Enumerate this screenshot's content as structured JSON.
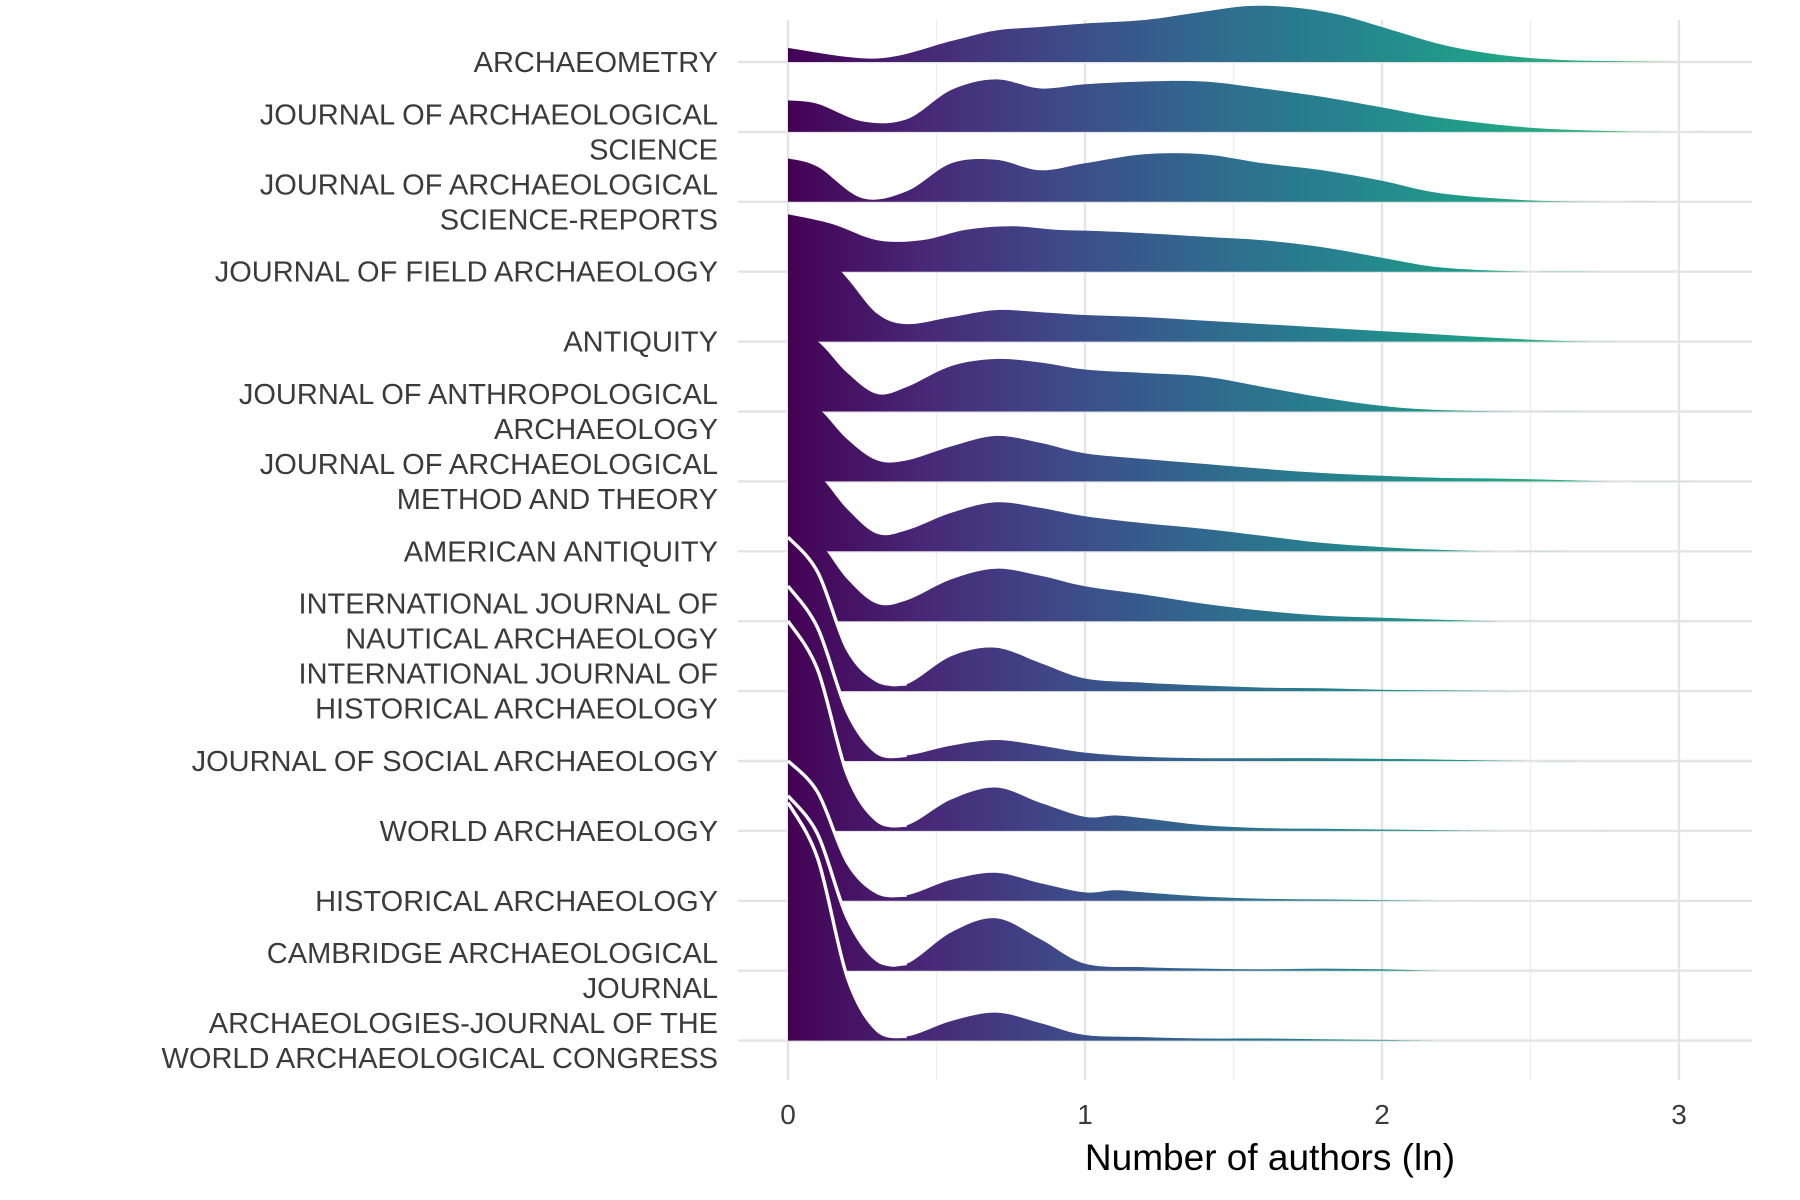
{
  "chart_data": {
    "type": "ridgeline",
    "title": "",
    "xlabel": "Number of authors (ln)",
    "ylabel": "",
    "xlim": [
      0,
      3.2
    ],
    "xticks": [
      "0",
      "1",
      "2",
      "3"
    ],
    "xtick_values": [
      0,
      1,
      2,
      3
    ],
    "grid": true,
    "legend": "none",
    "colormap": "viridis",
    "color_scale": [
      "#440154",
      "#482878",
      "#3e4a89",
      "#31688e",
      "#26828e",
      "#1f9e89",
      "#35b779",
      "#6ece58"
    ],
    "series": [
      {
        "name": "ARCHAEOMETRY",
        "label_lines": [
          "ARCHAEOMETRY"
        ],
        "x": [
          0,
          0.3,
          0.55,
          0.7,
          0.85,
          1.0,
          1.2,
          1.4,
          1.55,
          1.7,
          1.85,
          2.0,
          2.2,
          2.4,
          2.6,
          2.8,
          3.0,
          3.2
        ],
        "density": [
          0.2,
          0.05,
          0.3,
          0.45,
          0.5,
          0.55,
          0.6,
          0.72,
          0.8,
          0.78,
          0.68,
          0.5,
          0.25,
          0.1,
          0.03,
          0.01,
          0.0,
          0.0
        ]
      },
      {
        "name": "JOURNAL OF ARCHAEOLOGICAL SCIENCE",
        "label_lines": [
          "JOURNAL OF ARCHAEOLOGICAL",
          "SCIENCE"
        ],
        "x": [
          0,
          0.1,
          0.25,
          0.4,
          0.55,
          0.7,
          0.85,
          1.0,
          1.2,
          1.4,
          1.6,
          1.8,
          2.0,
          2.2,
          2.5,
          2.8,
          3.0,
          3.2
        ],
        "density": [
          0.45,
          0.4,
          0.15,
          0.18,
          0.6,
          0.75,
          0.62,
          0.68,
          0.72,
          0.72,
          0.62,
          0.5,
          0.35,
          0.2,
          0.06,
          0.01,
          0.0,
          0.0
        ]
      },
      {
        "name": "JOURNAL OF ARCHAEOLOGICAL SCIENCE-REPORTS",
        "label_lines": [
          "JOURNAL OF ARCHAEOLOGICAL",
          "SCIENCE-REPORTS"
        ],
        "x": [
          0,
          0.1,
          0.25,
          0.4,
          0.55,
          0.7,
          0.85,
          1.0,
          1.2,
          1.4,
          1.6,
          1.8,
          2.0,
          2.2,
          2.5,
          2.8,
          3.0,
          3.2
        ],
        "density": [
          0.62,
          0.5,
          0.05,
          0.15,
          0.55,
          0.6,
          0.45,
          0.55,
          0.68,
          0.68,
          0.55,
          0.45,
          0.3,
          0.12,
          0.02,
          0.0,
          0.0,
          0.0
        ]
      },
      {
        "name": "JOURNAL OF FIELD ARCHAEOLOGY",
        "label_lines": [
          "JOURNAL OF FIELD ARCHAEOLOGY"
        ],
        "x": [
          0,
          0.15,
          0.3,
          0.45,
          0.6,
          0.75,
          0.9,
          1.05,
          1.2,
          1.4,
          1.6,
          1.8,
          2.0,
          2.2,
          2.5,
          2.8,
          3.2
        ],
        "density": [
          0.82,
          0.68,
          0.45,
          0.45,
          0.6,
          0.65,
          0.6,
          0.58,
          0.55,
          0.5,
          0.45,
          0.35,
          0.2,
          0.06,
          0.0,
          0.0,
          0.0
        ]
      },
      {
        "name": "ANTIQUITY",
        "label_lines": [
          "ANTIQUITY"
        ],
        "x": [
          0,
          0.1,
          0.2,
          0.3,
          0.4,
          0.55,
          0.7,
          0.85,
          1.0,
          1.2,
          1.4,
          1.6,
          1.8,
          2.0,
          2.2,
          2.4,
          2.6,
          2.8,
          3.2
        ],
        "density": [
          1.45,
          1.35,
          0.9,
          0.4,
          0.25,
          0.35,
          0.45,
          0.42,
          0.38,
          0.35,
          0.3,
          0.25,
          0.2,
          0.15,
          0.1,
          0.05,
          0.01,
          0.0,
          0.0
        ]
      },
      {
        "name": "JOURNAL OF ANTHROPOLOGICAL ARCHAEOLOGY",
        "label_lines": [
          "JOURNAL OF ANTHROPOLOGICAL",
          "ARCHAEOLOGY"
        ],
        "x": [
          0,
          0.1,
          0.2,
          0.3,
          0.4,
          0.55,
          0.7,
          0.85,
          1.0,
          1.2,
          1.4,
          1.6,
          1.8,
          2.0,
          2.2,
          2.5,
          2.8,
          3.2
        ],
        "density": [
          1.2,
          1.0,
          0.55,
          0.25,
          0.35,
          0.65,
          0.75,
          0.7,
          0.6,
          0.55,
          0.5,
          0.35,
          0.2,
          0.08,
          0.02,
          0.0,
          0.0,
          0.0
        ]
      },
      {
        "name": "JOURNAL OF ARCHAEOLOGICAL METHOD AND THEORY",
        "label_lines": [
          "JOURNAL OF ARCHAEOLOGICAL",
          "METHOD AND THEORY"
        ],
        "x": [
          0,
          0.1,
          0.2,
          0.3,
          0.4,
          0.55,
          0.7,
          0.85,
          1.0,
          1.2,
          1.4,
          1.6,
          1.8,
          2.0,
          2.2,
          2.4,
          2.6,
          2.8,
          3.2
        ],
        "density": [
          1.25,
          1.05,
          0.6,
          0.3,
          0.3,
          0.5,
          0.65,
          0.55,
          0.4,
          0.32,
          0.25,
          0.18,
          0.12,
          0.08,
          0.05,
          0.04,
          0.02,
          0.0,
          0.0
        ]
      },
      {
        "name": "AMERICAN ANTIQUITY",
        "label_lines": [
          "AMERICAN ANTIQUITY"
        ],
        "x": [
          0,
          0.1,
          0.2,
          0.3,
          0.4,
          0.55,
          0.7,
          0.85,
          1.0,
          1.2,
          1.4,
          1.6,
          1.8,
          2.0,
          2.2,
          2.4,
          2.8,
          3.2
        ],
        "density": [
          1.3,
          1.1,
          0.6,
          0.25,
          0.3,
          0.55,
          0.7,
          0.62,
          0.5,
          0.4,
          0.32,
          0.22,
          0.12,
          0.06,
          0.02,
          0.0,
          0.0,
          0.0
        ]
      },
      {
        "name": "INTERNATIONAL JOURNAL OF NAUTICAL ARCHAEOLOGY",
        "label_lines": [
          "INTERNATIONAL JOURNAL OF",
          "NAUTICAL ARCHAEOLOGY"
        ],
        "x": [
          0,
          0.1,
          0.2,
          0.3,
          0.4,
          0.55,
          0.7,
          0.85,
          1.0,
          1.2,
          1.4,
          1.6,
          1.8,
          2.0,
          2.2,
          2.4,
          2.8,
          3.2
        ],
        "density": [
          1.35,
          1.15,
          0.6,
          0.25,
          0.3,
          0.6,
          0.75,
          0.65,
          0.5,
          0.38,
          0.25,
          0.15,
          0.08,
          0.05,
          0.02,
          0.0,
          0.0,
          0.0
        ]
      },
      {
        "name": "INTERNATIONAL JOURNAL OF HISTORICAL ARCHAEOLOGY",
        "label_lines": [
          "INTERNATIONAL JOURNAL OF",
          "HISTORICAL ARCHAEOLOGY"
        ],
        "x": [
          0,
          0.1,
          0.2,
          0.3,
          0.4,
          0.55,
          0.7,
          0.85,
          1.0,
          1.2,
          1.4,
          1.6,
          1.8,
          2.0,
          2.2,
          2.5,
          2.8,
          3.2
        ],
        "density": [
          2.2,
          1.7,
          0.6,
          0.15,
          0.1,
          0.5,
          0.62,
          0.4,
          0.18,
          0.12,
          0.08,
          0.05,
          0.04,
          0.02,
          0.01,
          0.0,
          0.0,
          0.0
        ]
      },
      {
        "name": "JOURNAL OF SOCIAL ARCHAEOLOGY",
        "label_lines": [
          "JOURNAL OF SOCIAL ARCHAEOLOGY"
        ],
        "x": [
          0,
          0.1,
          0.2,
          0.3,
          0.4,
          0.55,
          0.7,
          0.85,
          1.0,
          1.2,
          1.4,
          1.6,
          1.8,
          2.0,
          2.2,
          2.5,
          2.8,
          3.2
        ],
        "density": [
          2.5,
          1.9,
          0.7,
          0.12,
          0.08,
          0.22,
          0.3,
          0.22,
          0.12,
          0.06,
          0.04,
          0.04,
          0.04,
          0.03,
          0.02,
          0.0,
          0.0,
          0.0
        ]
      },
      {
        "name": "WORLD ARCHAEOLOGY",
        "label_lines": [
          "WORLD ARCHAEOLOGY"
        ],
        "x": [
          0,
          0.1,
          0.2,
          0.3,
          0.4,
          0.55,
          0.7,
          0.85,
          1.0,
          1.1,
          1.2,
          1.4,
          1.6,
          1.8,
          2.0,
          2.2,
          2.5,
          3.2
        ],
        "density": [
          3.0,
          2.3,
          0.8,
          0.15,
          0.08,
          0.45,
          0.62,
          0.4,
          0.2,
          0.22,
          0.18,
          0.08,
          0.04,
          0.03,
          0.02,
          0.01,
          0.0,
          0.0
        ]
      },
      {
        "name": "HISTORICAL ARCHAEOLOGY",
        "label_lines": [
          "HISTORICAL ARCHAEOLOGY"
        ],
        "x": [
          0,
          0.1,
          0.2,
          0.3,
          0.4,
          0.55,
          0.7,
          0.85,
          1.0,
          1.1,
          1.2,
          1.4,
          1.6,
          1.8,
          2.0,
          2.2,
          2.5,
          3.2
        ],
        "density": [
          2.0,
          1.55,
          0.55,
          0.12,
          0.08,
          0.3,
          0.4,
          0.25,
          0.12,
          0.15,
          0.12,
          0.06,
          0.03,
          0.02,
          0.01,
          0.0,
          0.0,
          0.0
        ]
      },
      {
        "name": "CAMBRIDGE ARCHAEOLOGICAL JOURNAL",
        "label_lines": [
          "CAMBRIDGE ARCHAEOLOGICAL",
          "JOURNAL"
        ],
        "x": [
          0,
          0.1,
          0.2,
          0.3,
          0.4,
          0.55,
          0.7,
          0.85,
          1.0,
          1.2,
          1.4,
          1.6,
          1.8,
          2.0,
          2.2,
          2.5,
          3.2
        ],
        "density": [
          2.5,
          1.95,
          0.75,
          0.15,
          0.1,
          0.55,
          0.75,
          0.45,
          0.1,
          0.05,
          0.03,
          0.02,
          0.03,
          0.02,
          0.0,
          0.0,
          0.0
        ]
      },
      {
        "name": "ARCHAEOLOGIES-JOURNAL OF THE WORLD ARCHAEOLOGICAL CONGRESS",
        "label_lines": [
          "ARCHAEOLOGIES-JOURNAL OF THE",
          "WORLD ARCHAEOLOGICAL CONGRESS"
        ],
        "x": [
          0,
          0.1,
          0.2,
          0.3,
          0.4,
          0.55,
          0.7,
          0.85,
          1.0,
          1.2,
          1.4,
          1.6,
          1.8,
          2.0,
          2.2,
          2.5,
          3.2
        ],
        "density": [
          3.4,
          2.6,
          0.9,
          0.15,
          0.06,
          0.28,
          0.4,
          0.25,
          0.08,
          0.05,
          0.03,
          0.03,
          0.02,
          0.01,
          0.0,
          0.0,
          0.0
        ]
      }
    ]
  }
}
